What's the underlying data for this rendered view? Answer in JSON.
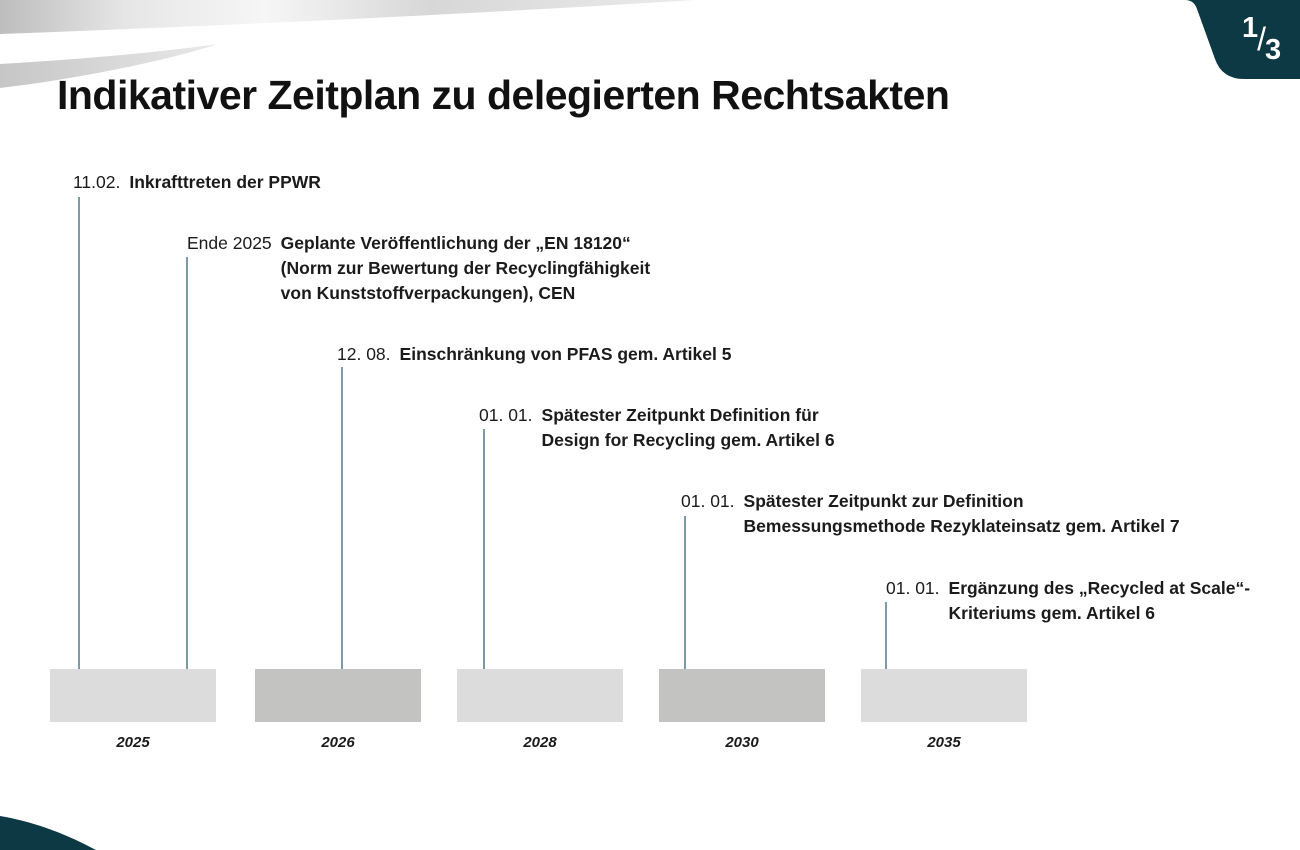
{
  "page": {
    "title": "Indikativer Zeitplan zu delegierten Rechtsakten",
    "indicator": {
      "numerator": "1",
      "separator": "/",
      "denominator": "3"
    }
  },
  "colors": {
    "accent_dark": "#0d3944",
    "connector_line": "#7e99a7",
    "block_light": "#dcdcdc",
    "block_dark": "#c3c3c2",
    "text": "#1b1b1b"
  },
  "timeline": {
    "events": [
      {
        "date": "11.02.",
        "lines": [
          "Inkrafttreten der PPWR"
        ]
      },
      {
        "date": "Ende 2025",
        "lines": [
          "Geplante Veröffentlichung der „EN 18120“",
          "(Norm zur Bewertung der Recyclingfähigkeit",
          "von Kunststoffverpackungen), CEN"
        ]
      },
      {
        "date": "12. 08.",
        "lines": [
          "Einschränkung von PFAS gem. Artikel 5"
        ]
      },
      {
        "date": "01. 01.",
        "lines": [
          "Spätester Zeitpunkt Definition für",
          "Design for Recycling gem. Artikel 6"
        ]
      },
      {
        "date": "01. 01.",
        "lines": [
          "Spätester Zeitpunkt zur Definition",
          "Bemessungsmethode Rezyklateinsatz gem. Artikel 7"
        ]
      },
      {
        "date": "01. 01.",
        "lines": [
          "Ergänzung des „Recycled at Scale“-",
          "Kriteriums gem. Artikel 6"
        ]
      }
    ],
    "years": [
      "2025",
      "2026",
      "2028",
      "2030",
      "2035"
    ]
  }
}
